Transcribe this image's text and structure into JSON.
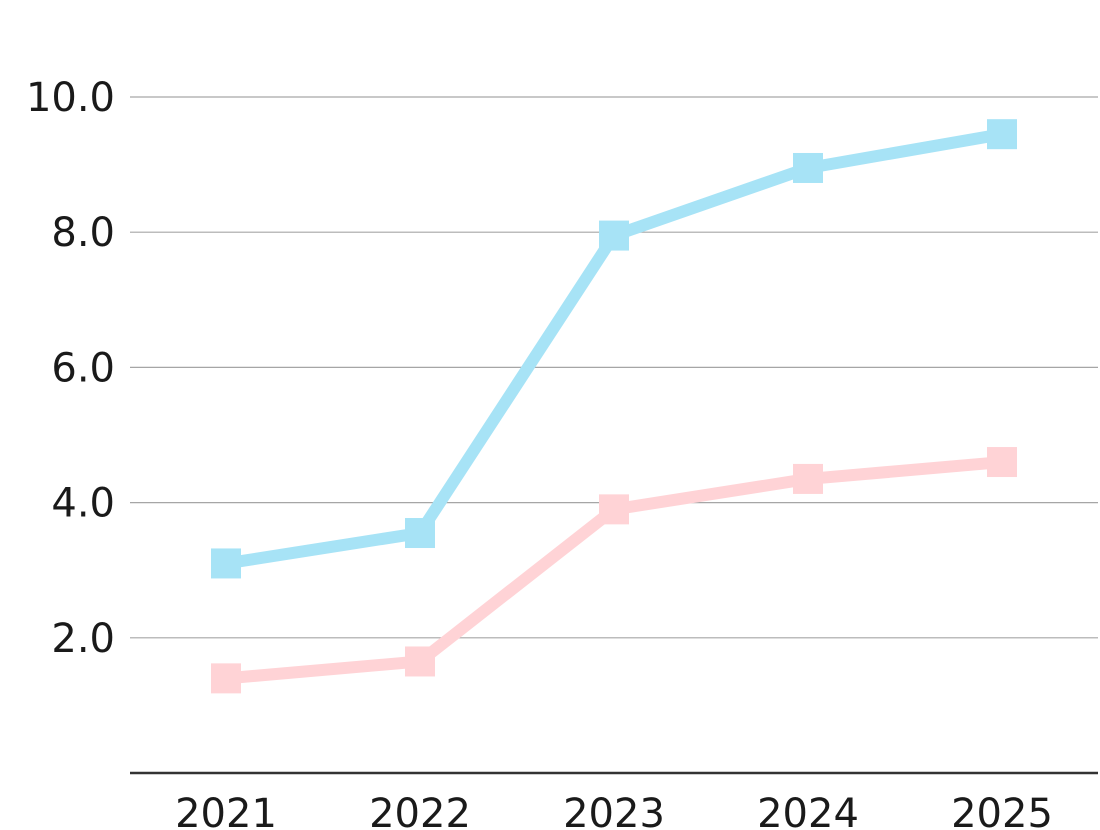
{
  "chart_data": {
    "type": "line",
    "title": "",
    "xlabel": "",
    "ylabel": "",
    "categories": [
      "2021",
      "2022",
      "2023",
      "2024",
      "2025"
    ],
    "ylim": [
      0,
      10
    ],
    "y_ticks": [
      "2.0",
      "4.0",
      "6.0",
      "8.0",
      "10.0"
    ],
    "grid": true,
    "legend": "none",
    "marker": "square",
    "series": [
      {
        "color": "#a7e3f6",
        "values": [
          3.1,
          3.55,
          7.95,
          8.95,
          9.45
        ]
      },
      {
        "color": "#ffd3d6",
        "values": [
          1.4,
          1.65,
          3.9,
          4.35,
          4.6
        ]
      }
    ]
  }
}
